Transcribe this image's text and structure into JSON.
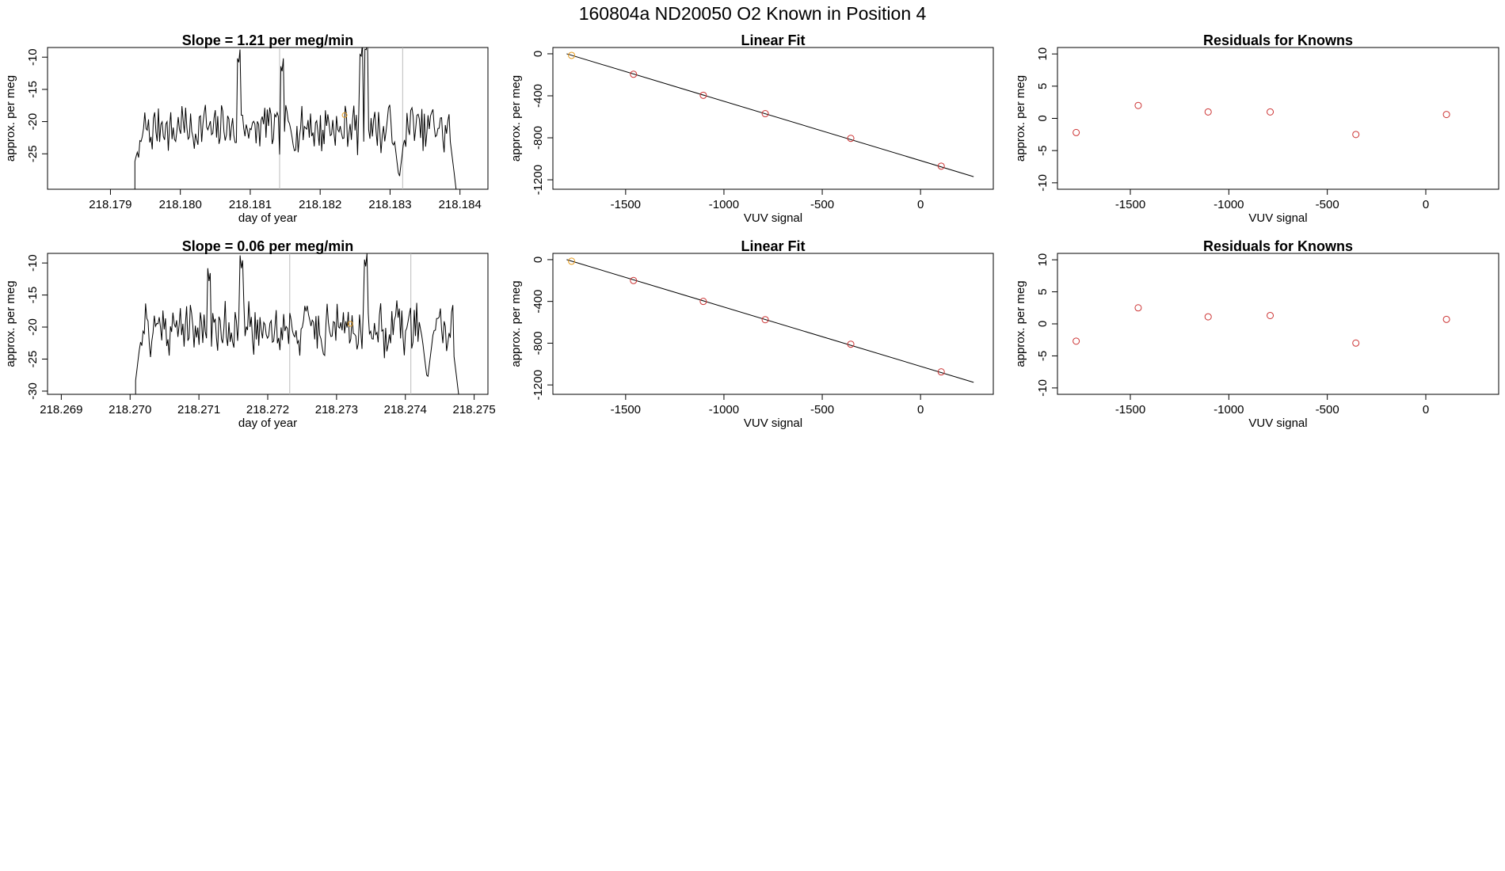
{
  "page": {
    "title": "160804a     ND20050   O2 Known in Position  4"
  },
  "colors": {
    "series_line": "#000000",
    "marker_main": "#cc3333",
    "marker_highlight": "#e69a1a",
    "vline": "#bbbbbb",
    "fit_line": "#000000"
  },
  "chart_data": [
    {
      "type": "line",
      "title": "Slope =  1.21  per meg/min",
      "xlabel": "day of year",
      "ylabel": "approx. per meg",
      "xlim": [
        218.1781,
        218.1844
      ],
      "ylim": [
        -30.5,
        -8.5
      ],
      "xticks": [
        218.179,
        218.18,
        218.181,
        218.182,
        218.183,
        218.184
      ],
      "xtick_labels": [
        "218.179",
        "218.180",
        "218.181",
        "218.182",
        "218.183",
        "218.184"
      ],
      "yticks": [
        -10,
        -15,
        -20,
        -25
      ],
      "ytick_labels": [
        "-10",
        "-15",
        "-20",
        "-25"
      ],
      "vlines": [
        218.18142,
        218.18318
      ],
      "highlight_point": {
        "x": 218.18235,
        "y": -19
      },
      "series_seed": 7,
      "x_start": 218.17935,
      "x_end": 218.18395,
      "base_level": -21,
      "amplitude": 3.2,
      "peaks": [
        [
          218.18083,
          -11.5
        ],
        [
          218.18265,
          -9.8
        ],
        [
          218.18145,
          -12.8
        ],
        [
          218.18258,
          -10.7
        ]
      ],
      "dips": [
        [
          218.18313,
          -29
        ],
        [
          218.18395,
          -31
        ]
      ]
    },
    {
      "type": "scatter",
      "title": "Linear Fit",
      "xlabel": "VUV signal",
      "ylabel": "approx. per meg",
      "xlim": [
        -1870,
        370
      ],
      "ylim": [
        -1290,
        60
      ],
      "xticks": [
        -1500,
        -1000,
        -500,
        0
      ],
      "xtick_labels": [
        "-1500",
        "-1000",
        "-500",
        "0"
      ],
      "yticks": [
        0,
        -400,
        -800,
        -1200
      ],
      "ytick_labels": [
        "0",
        "-400",
        "-800",
        "-1200"
      ],
      "x": [
        -1775,
        -1460,
        -1105,
        -790,
        -355,
        105
      ],
      "y": [
        -15,
        -195,
        -395,
        -570,
        -805,
        -1070
      ],
      "fit_line": {
        "x": [
          -1800,
          270
        ],
        "y": [
          0,
          -1170
        ]
      }
    },
    {
      "type": "scatter",
      "title": "Residuals for Knowns",
      "xlabel": "VUV signal",
      "ylabel": "approx. per meg",
      "xlim": [
        -1870,
        370
      ],
      "ylim": [
        -11,
        11
      ],
      "xticks": [
        -1500,
        -1000,
        -500,
        0
      ],
      "xtick_labels": [
        "-1500",
        "-1000",
        "-500",
        "0"
      ],
      "yticks": [
        10,
        5,
        0,
        -5,
        -10
      ],
      "ytick_labels": [
        "10",
        "5",
        "0",
        "-5",
        "-10"
      ],
      "x": [
        -1775,
        -1460,
        -1105,
        -790,
        -355,
        105
      ],
      "y": [
        -2.2,
        2.0,
        1.0,
        1.0,
        -2.5,
        0.6
      ]
    },
    {
      "type": "line",
      "title": "Slope =  0.06  per meg/min",
      "xlabel": "day of year",
      "ylabel": "approx. per meg",
      "xlim": [
        218.2688,
        218.2752
      ],
      "ylim": [
        -30.5,
        -8.5
      ],
      "xticks": [
        218.269,
        218.27,
        218.271,
        218.272,
        218.273,
        218.274,
        218.275
      ],
      "xtick_labels": [
        "218.269",
        "218.270",
        "218.271",
        "218.272",
        "218.273",
        "218.274",
        "218.275"
      ],
      "yticks": [
        -10,
        -15,
        -20,
        -25,
        -30
      ],
      "ytick_labels": [
        "-10",
        "-15",
        "-20",
        "-25",
        "-30"
      ],
      "vlines": [
        218.27232,
        218.27408
      ],
      "highlight_point": {
        "x": 218.2732,
        "y": -19.5
      },
      "series_seed": 21,
      "x_start": 218.27008,
      "x_end": 218.27478,
      "base_level": -20,
      "amplitude": 3.6,
      "peaks": [
        [
          218.27162,
          -11.2
        ],
        [
          218.27342,
          -11.0
        ],
        [
          218.27115,
          -13.2
        ]
      ],
      "dips": [
        [
          218.27005,
          -31
        ],
        [
          218.27432,
          -28.4
        ],
        [
          218.27478,
          -31
        ]
      ]
    },
    {
      "type": "scatter",
      "title": "Linear Fit",
      "xlabel": "VUV signal",
      "ylabel": "approx. per meg",
      "xlim": [
        -1870,
        370
      ],
      "ylim": [
        -1290,
        60
      ],
      "xticks": [
        -1500,
        -1000,
        -500,
        0
      ],
      "xtick_labels": [
        "-1500",
        "-1000",
        "-500",
        "0"
      ],
      "yticks": [
        0,
        -400,
        -800,
        -1200
      ],
      "ytick_labels": [
        "0",
        "-400",
        "-800",
        "-1200"
      ],
      "x": [
        -1775,
        -1460,
        -1105,
        -790,
        -355,
        105
      ],
      "y": [
        -15,
        -200,
        -400,
        -575,
        -810,
        -1075
      ],
      "fit_line": {
        "x": [
          -1800,
          270
        ],
        "y": [
          0,
          -1175
        ]
      }
    },
    {
      "type": "scatter",
      "title": "Residuals for Knowns",
      "xlabel": "VUV signal",
      "ylabel": "approx. per meg",
      "xlim": [
        -1870,
        370
      ],
      "ylim": [
        -11,
        11
      ],
      "xticks": [
        -1500,
        -1000,
        -500,
        0
      ],
      "xtick_labels": [
        "-1500",
        "-1000",
        "-500",
        "0"
      ],
      "yticks": [
        10,
        5,
        0,
        -5,
        -10
      ],
      "ytick_labels": [
        "10",
        "5",
        "0",
        "-5",
        "-10"
      ],
      "x": [
        -1775,
        -1460,
        -1105,
        -790,
        -355,
        105
      ],
      "y": [
        -2.7,
        2.5,
        1.1,
        1.3,
        -3.0,
        0.7
      ]
    }
  ]
}
